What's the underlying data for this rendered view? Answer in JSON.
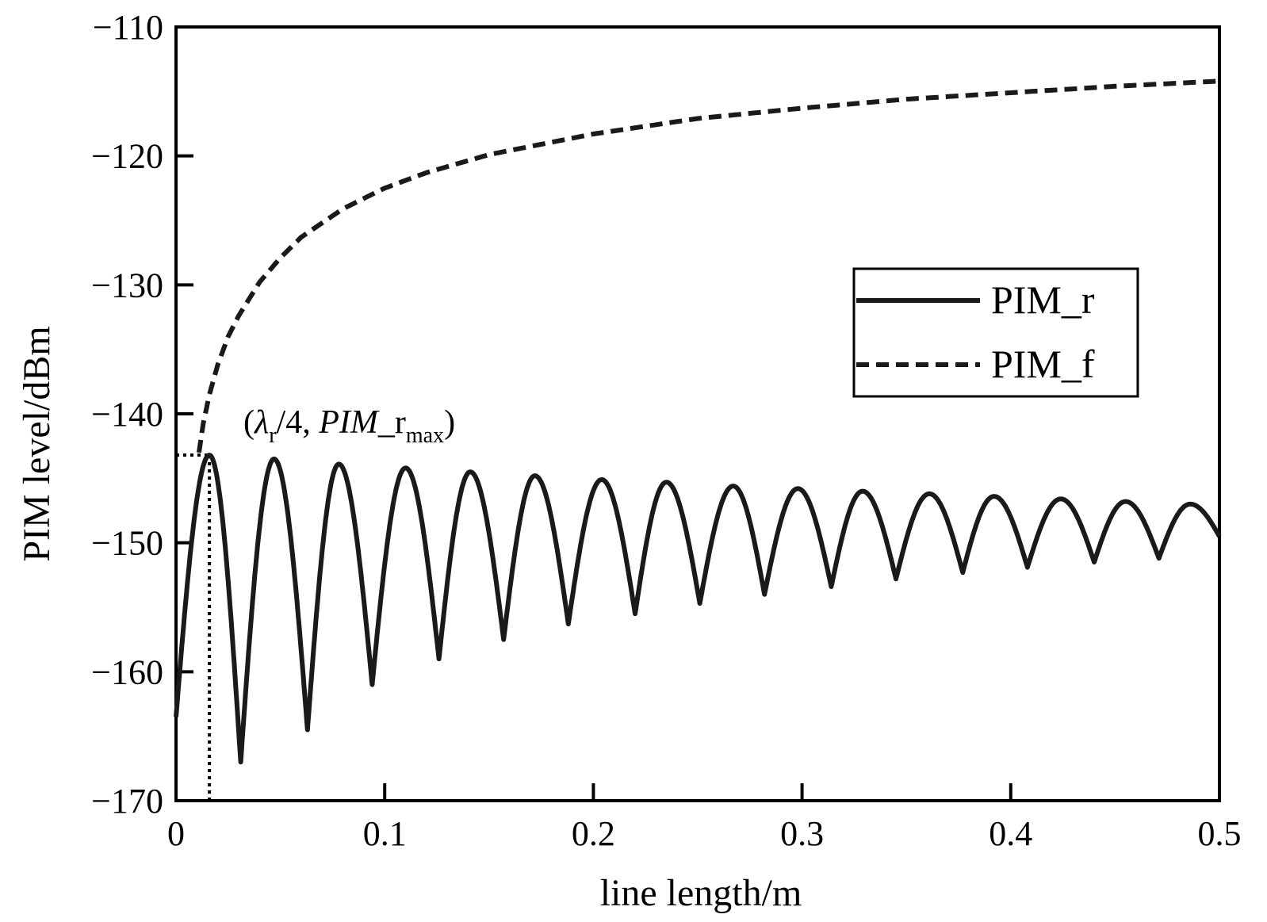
{
  "chart_data": {
    "type": "line",
    "xlabel": "line length/m",
    "ylabel": "PIM level/dBm",
    "xlim": [
      0,
      0.5
    ],
    "ylim": [
      -170,
      -110
    ],
    "x_ticks": [
      0,
      0.1,
      0.2,
      0.3,
      0.4,
      0.5
    ],
    "x_tick_labels": [
      "0",
      "0.1",
      "0.2",
      "0.3",
      "0.4",
      "0.5"
    ],
    "y_ticks": [
      -110,
      -120,
      -130,
      -140,
      -150,
      -160,
      -170
    ],
    "y_tick_labels": [
      "−110",
      "−120",
      "−130",
      "−140",
      "−150",
      "−160",
      "−170"
    ],
    "grid": false,
    "legend_position": "right",
    "series": [
      {
        "name": "PIM_r",
        "style": "solid",
        "color": "#1a1a1a",
        "peaks": [
          {
            "x": 0.016,
            "y": -143.2
          },
          {
            "x": 0.047,
            "y": -143.5
          },
          {
            "x": 0.078,
            "y": -143.9
          },
          {
            "x": 0.11,
            "y": -144.2
          },
          {
            "x": 0.141,
            "y": -144.5
          },
          {
            "x": 0.172,
            "y": -144.8
          },
          {
            "x": 0.204,
            "y": -145.1
          },
          {
            "x": 0.235,
            "y": -145.3
          },
          {
            "x": 0.267,
            "y": -145.6
          },
          {
            "x": 0.298,
            "y": -145.8
          },
          {
            "x": 0.329,
            "y": -146.0
          },
          {
            "x": 0.361,
            "y": -146.2
          },
          {
            "x": 0.392,
            "y": -146.4
          },
          {
            "x": 0.424,
            "y": -146.6
          },
          {
            "x": 0.455,
            "y": -146.8
          },
          {
            "x": 0.486,
            "y": -147.0
          }
        ],
        "troughs": [
          {
            "x": 0.031,
            "y": -167.0
          },
          {
            "x": 0.063,
            "y": -164.5
          },
          {
            "x": 0.094,
            "y": -161.0
          },
          {
            "x": 0.126,
            "y": -159.0
          },
          {
            "x": 0.157,
            "y": -157.5
          },
          {
            "x": 0.188,
            "y": -156.3
          },
          {
            "x": 0.22,
            "y": -155.5
          },
          {
            "x": 0.251,
            "y": -154.7
          },
          {
            "x": 0.282,
            "y": -154.0
          },
          {
            "x": 0.314,
            "y": -153.4
          },
          {
            "x": 0.345,
            "y": -152.8
          },
          {
            "x": 0.377,
            "y": -152.3
          },
          {
            "x": 0.408,
            "y": -151.9
          },
          {
            "x": 0.44,
            "y": -151.5
          },
          {
            "x": 0.471,
            "y": -151.2
          }
        ],
        "start": {
          "x": 0.0,
          "y": -163.5
        },
        "end": {
          "x": 0.5,
          "y": -149.5
        }
      },
      {
        "name": "PIM_f",
        "style": "dashed",
        "color": "#1a1a1a",
        "x": [
          0.011,
          0.013,
          0.016,
          0.02,
          0.025,
          0.03,
          0.04,
          0.05,
          0.06,
          0.08,
          0.1,
          0.12,
          0.15,
          0.2,
          0.25,
          0.3,
          0.35,
          0.4,
          0.45,
          0.5
        ],
        "values": [
          -143.0,
          -140.8,
          -138.5,
          -136.2,
          -134.0,
          -132.4,
          -129.8,
          -127.9,
          -126.3,
          -124.1,
          -122.5,
          -121.3,
          -119.9,
          -118.3,
          -117.1,
          -116.3,
          -115.6,
          -115.1,
          -114.6,
          -114.2
        ]
      }
    ],
    "annotation": {
      "open": "(",
      "lambda": "λ",
      "lambda_sub": "r",
      "mid": "/4, ",
      "pim": "PIM",
      "rest": "_r",
      "max_sub": "max",
      "close": ")",
      "x": 0.016,
      "y": -143.2
    }
  }
}
